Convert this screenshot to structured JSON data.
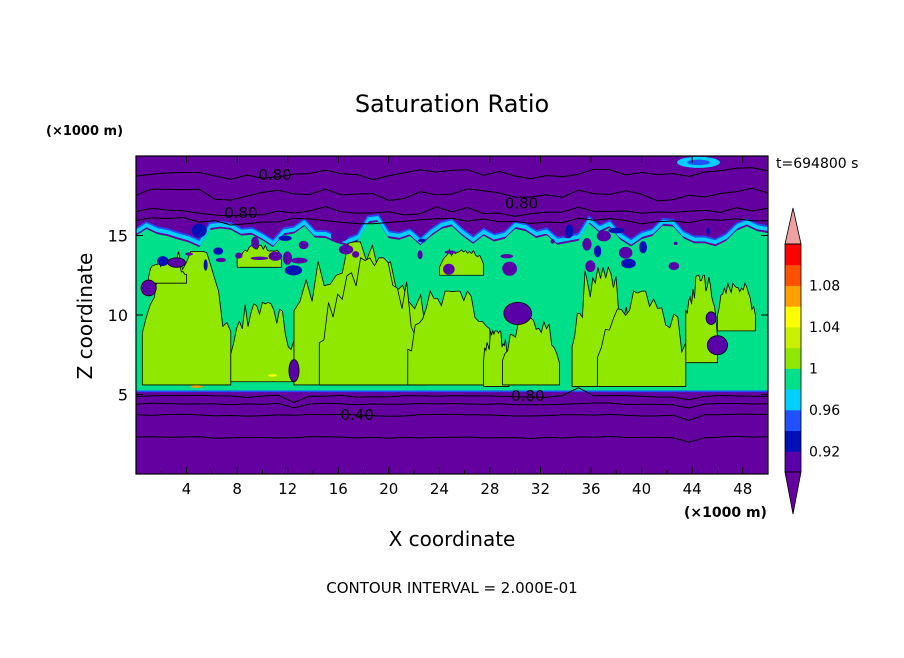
{
  "chart_data": {
    "type": "heatmap",
    "title": "Saturation Ratio",
    "xlabel": "X coordinate",
    "ylabel": "Z coordinate",
    "x_unit": "(×1000 m)",
    "y_unit": "(×1000 m)",
    "time_label": "t=694800 s",
    "footer": "CONTOUR INTERVAL = 2.000E-01",
    "xlim": [
      0,
      50
    ],
    "ylim": [
      0,
      20
    ],
    "x_ticks": [
      "4",
      "8",
      "12",
      "16",
      "20",
      "24",
      "28",
      "32",
      "36",
      "40",
      "44",
      "48"
    ],
    "x_tick_values": [
      4,
      8,
      12,
      16,
      20,
      24,
      28,
      32,
      36,
      40,
      44,
      48
    ],
    "y_ticks": [
      "5",
      "10",
      "15"
    ],
    "y_tick_values": [
      5,
      10,
      15
    ],
    "colorbar": {
      "levels": [
        0.9,
        0.92,
        0.94,
        0.96,
        0.98,
        1.0,
        1.02,
        1.04,
        1.06,
        1.08,
        1.1
      ],
      "labels": [
        "0.92",
        "0.96",
        "1",
        "1.04",
        "1.08"
      ],
      "label_values": [
        0.92,
        0.96,
        1.0,
        1.04,
        1.08
      ],
      "colors": [
        "#5a00a8",
        "#0010b8",
        "#2050ff",
        "#00d0ff",
        "#00e08a",
        "#90e800",
        "#c8f000",
        "#ffff00",
        "#ffa000",
        "#ff5000",
        "#ff0000"
      ],
      "under_color": "#6400a0",
      "over_color": "#f0a0a0"
    },
    "contour_labels": [
      {
        "text": "0.80",
        "x": 11,
        "y": 18.8
      },
      {
        "text": "0.80",
        "x": 8.3,
        "y": 16.4
      },
      {
        "text": "0.80",
        "x": 30.5,
        "y": 17.0
      },
      {
        "text": "0.80",
        "x": 31.0,
        "y": 4.9
      },
      {
        "text": "0.40",
        "x": 17.5,
        "y": 3.7
      }
    ]
  }
}
